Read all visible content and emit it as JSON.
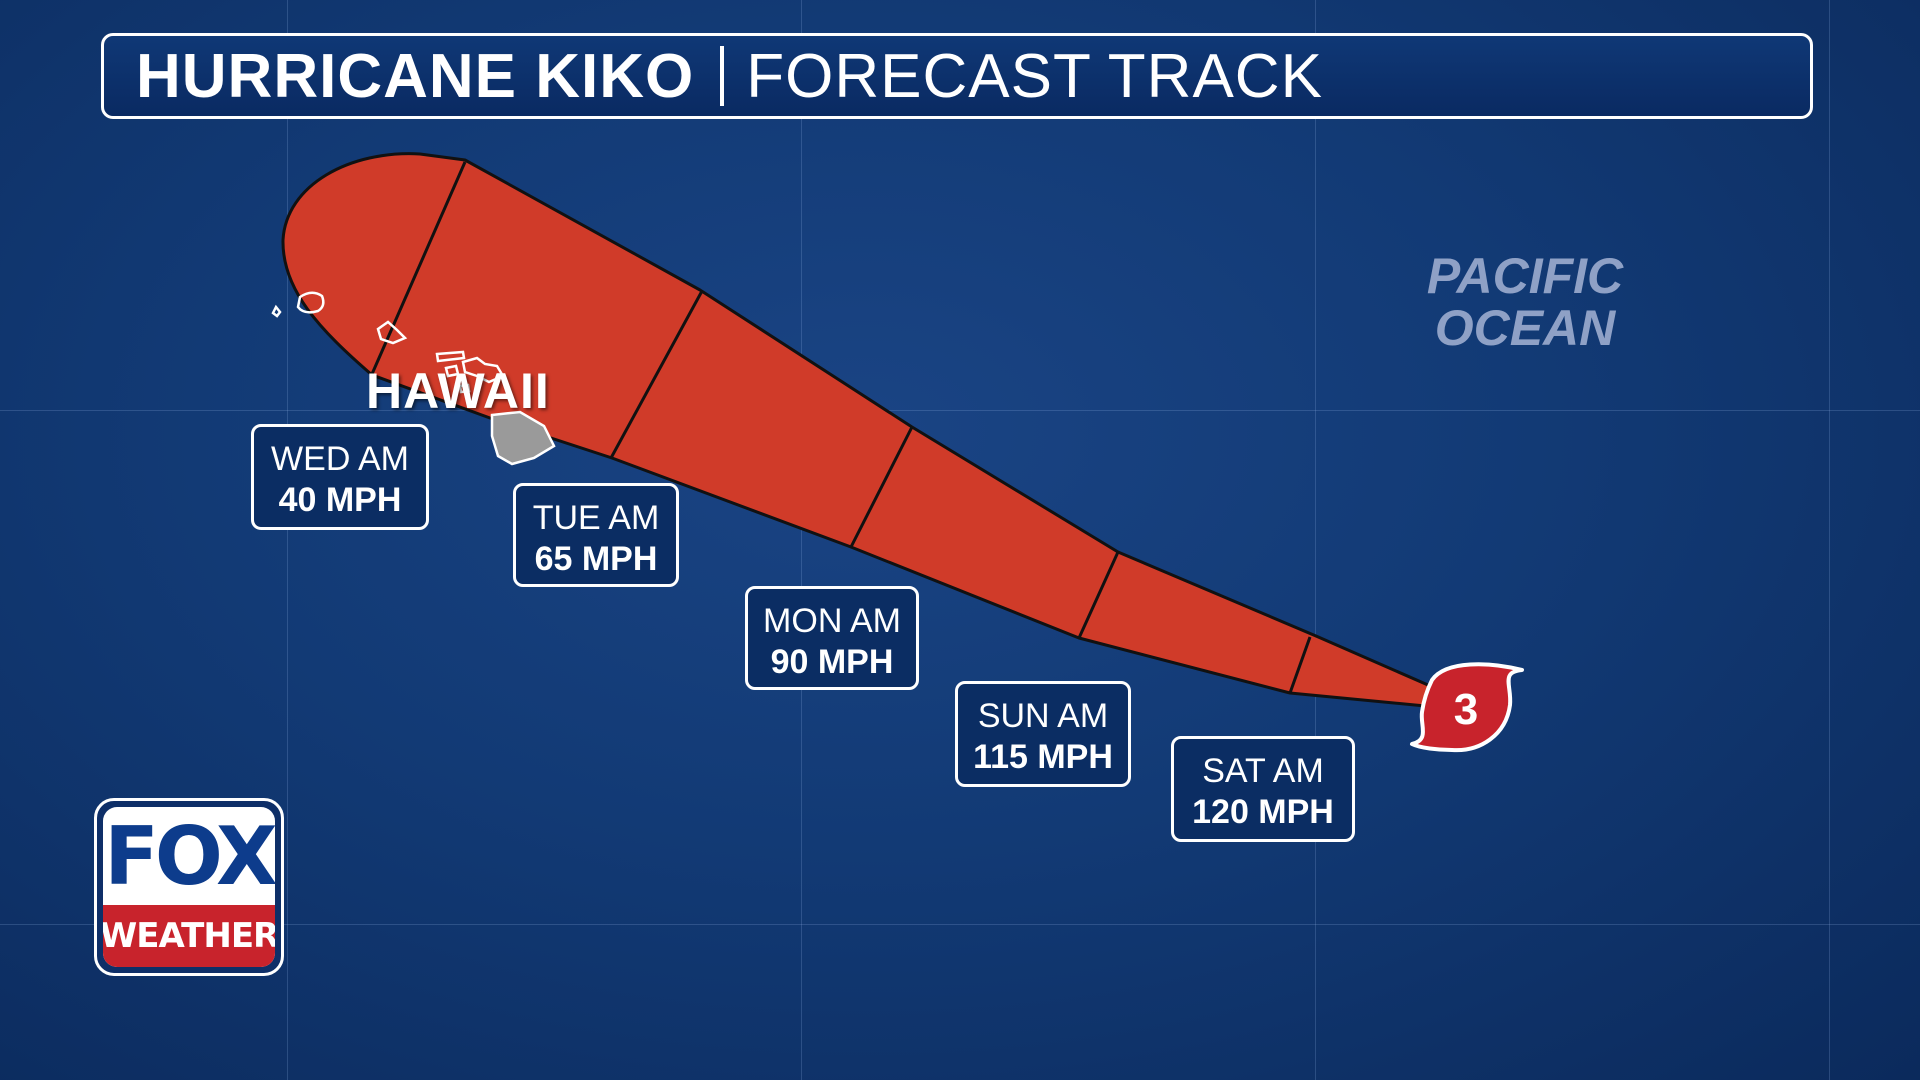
{
  "title": {
    "main": "HURRICANE KIKO",
    "sub": "FORECAST TRACK"
  },
  "map": {
    "place_label": "HAWAII",
    "ocean_label_line1": "PACIFIC",
    "ocean_label_line2": "OCEAN",
    "cone_color": "#d03b29",
    "ocean_color": "#123a75",
    "storm_symbol": {
      "icon": "hurricane-icon",
      "category": "3",
      "color": "#c8232c"
    }
  },
  "forecast": [
    {
      "day": "SAT AM",
      "wind": "120 MPH"
    },
    {
      "day": "SUN AM",
      "wind": "115 MPH"
    },
    {
      "day": "MON AM",
      "wind": "90 MPH"
    },
    {
      "day": "TUE AM",
      "wind": "65 MPH"
    },
    {
      "day": "WED AM",
      "wind": "40 MPH"
    }
  ],
  "logo": {
    "top": "FOX",
    "bottom": "WEATHER"
  }
}
